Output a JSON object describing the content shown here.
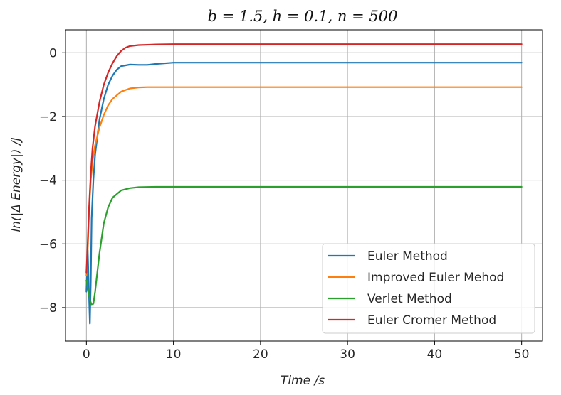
{
  "chart_data": {
    "type": "line",
    "title": "b = 1.5, h = 0.1, n = 500",
    "xlabel": "Time /s",
    "ylabel": "ln(|Δ Energy|) /J",
    "xlim": [
      -2.4,
      52.4
    ],
    "ylim": [
      -9.05,
      0.72
    ],
    "xticks": [
      0,
      10,
      20,
      30,
      40,
      50
    ],
    "yticks": [
      0,
      -2,
      -4,
      -6,
      -8
    ],
    "xtick_labels": [
      "0",
      "10",
      "20",
      "30",
      "40",
      "50"
    ],
    "ytick_labels": [
      "0",
      "−2",
      "−4",
      "−6",
      "−8"
    ],
    "grid": true,
    "legend_position": "lower-right",
    "series": [
      {
        "name": "Euler Method",
        "color": "#1f77b4",
        "x": [
          0,
          0.15,
          0.3,
          0.4,
          0.5,
          0.6,
          0.8,
          1,
          1.5,
          2,
          2.5,
          3,
          3.5,
          4,
          5,
          6,
          7,
          8,
          10,
          15,
          20,
          30,
          40,
          50
        ],
        "y": [
          -7.5,
          -6.2,
          -7.6,
          -8.5,
          -7.2,
          -5.2,
          -4.0,
          -3.2,
          -2.1,
          -1.45,
          -1.0,
          -0.72,
          -0.53,
          -0.42,
          -0.37,
          -0.38,
          -0.38,
          -0.35,
          -0.31,
          -0.31,
          -0.31,
          -0.31,
          -0.31,
          -0.31
        ]
      },
      {
        "name": "Improved Euler Mehod",
        "color": "#ff7f0e",
        "x": [
          0,
          0.1,
          0.2,
          0.3,
          0.5,
          0.7,
          1,
          1.5,
          2,
          2.5,
          3,
          4,
          5,
          6,
          7,
          8,
          10,
          20,
          30,
          40,
          50
        ],
        "y": [
          -7.0,
          -6.6,
          -5.8,
          -5.0,
          -4.0,
          -3.4,
          -2.9,
          -2.35,
          -1.95,
          -1.65,
          -1.45,
          -1.22,
          -1.12,
          -1.09,
          -1.08,
          -1.08,
          -1.08,
          -1.08,
          -1.08,
          -1.08,
          -1.08
        ]
      },
      {
        "name": "Verlet Method",
        "color": "#2ca02c",
        "x": [
          0,
          0.2,
          0.4,
          0.6,
          0.8,
          1,
          1.5,
          2,
          2.5,
          3,
          4,
          5,
          6,
          8,
          10,
          20,
          30,
          40,
          50
        ],
        "y": [
          -7.15,
          -7.45,
          -7.75,
          -7.92,
          -7.88,
          -7.5,
          -6.3,
          -5.35,
          -4.85,
          -4.55,
          -4.32,
          -4.25,
          -4.22,
          -4.21,
          -4.21,
          -4.21,
          -4.21,
          -4.21,
          -4.21
        ]
      },
      {
        "name": "Euler Cromer Method",
        "color": "#d62728",
        "x": [
          0,
          0.1,
          0.2,
          0.3,
          0.5,
          0.7,
          1,
          1.5,
          2,
          2.5,
          3,
          3.5,
          4,
          4.5,
          5,
          6,
          7,
          8,
          10,
          20,
          30,
          40,
          50
        ],
        "y": [
          -6.9,
          -6.3,
          -5.6,
          -4.9,
          -3.8,
          -3.0,
          -2.3,
          -1.55,
          -1.0,
          -0.62,
          -0.33,
          -0.1,
          0.06,
          0.16,
          0.21,
          0.24,
          0.25,
          0.26,
          0.27,
          0.27,
          0.27,
          0.27,
          0.27
        ]
      }
    ]
  }
}
